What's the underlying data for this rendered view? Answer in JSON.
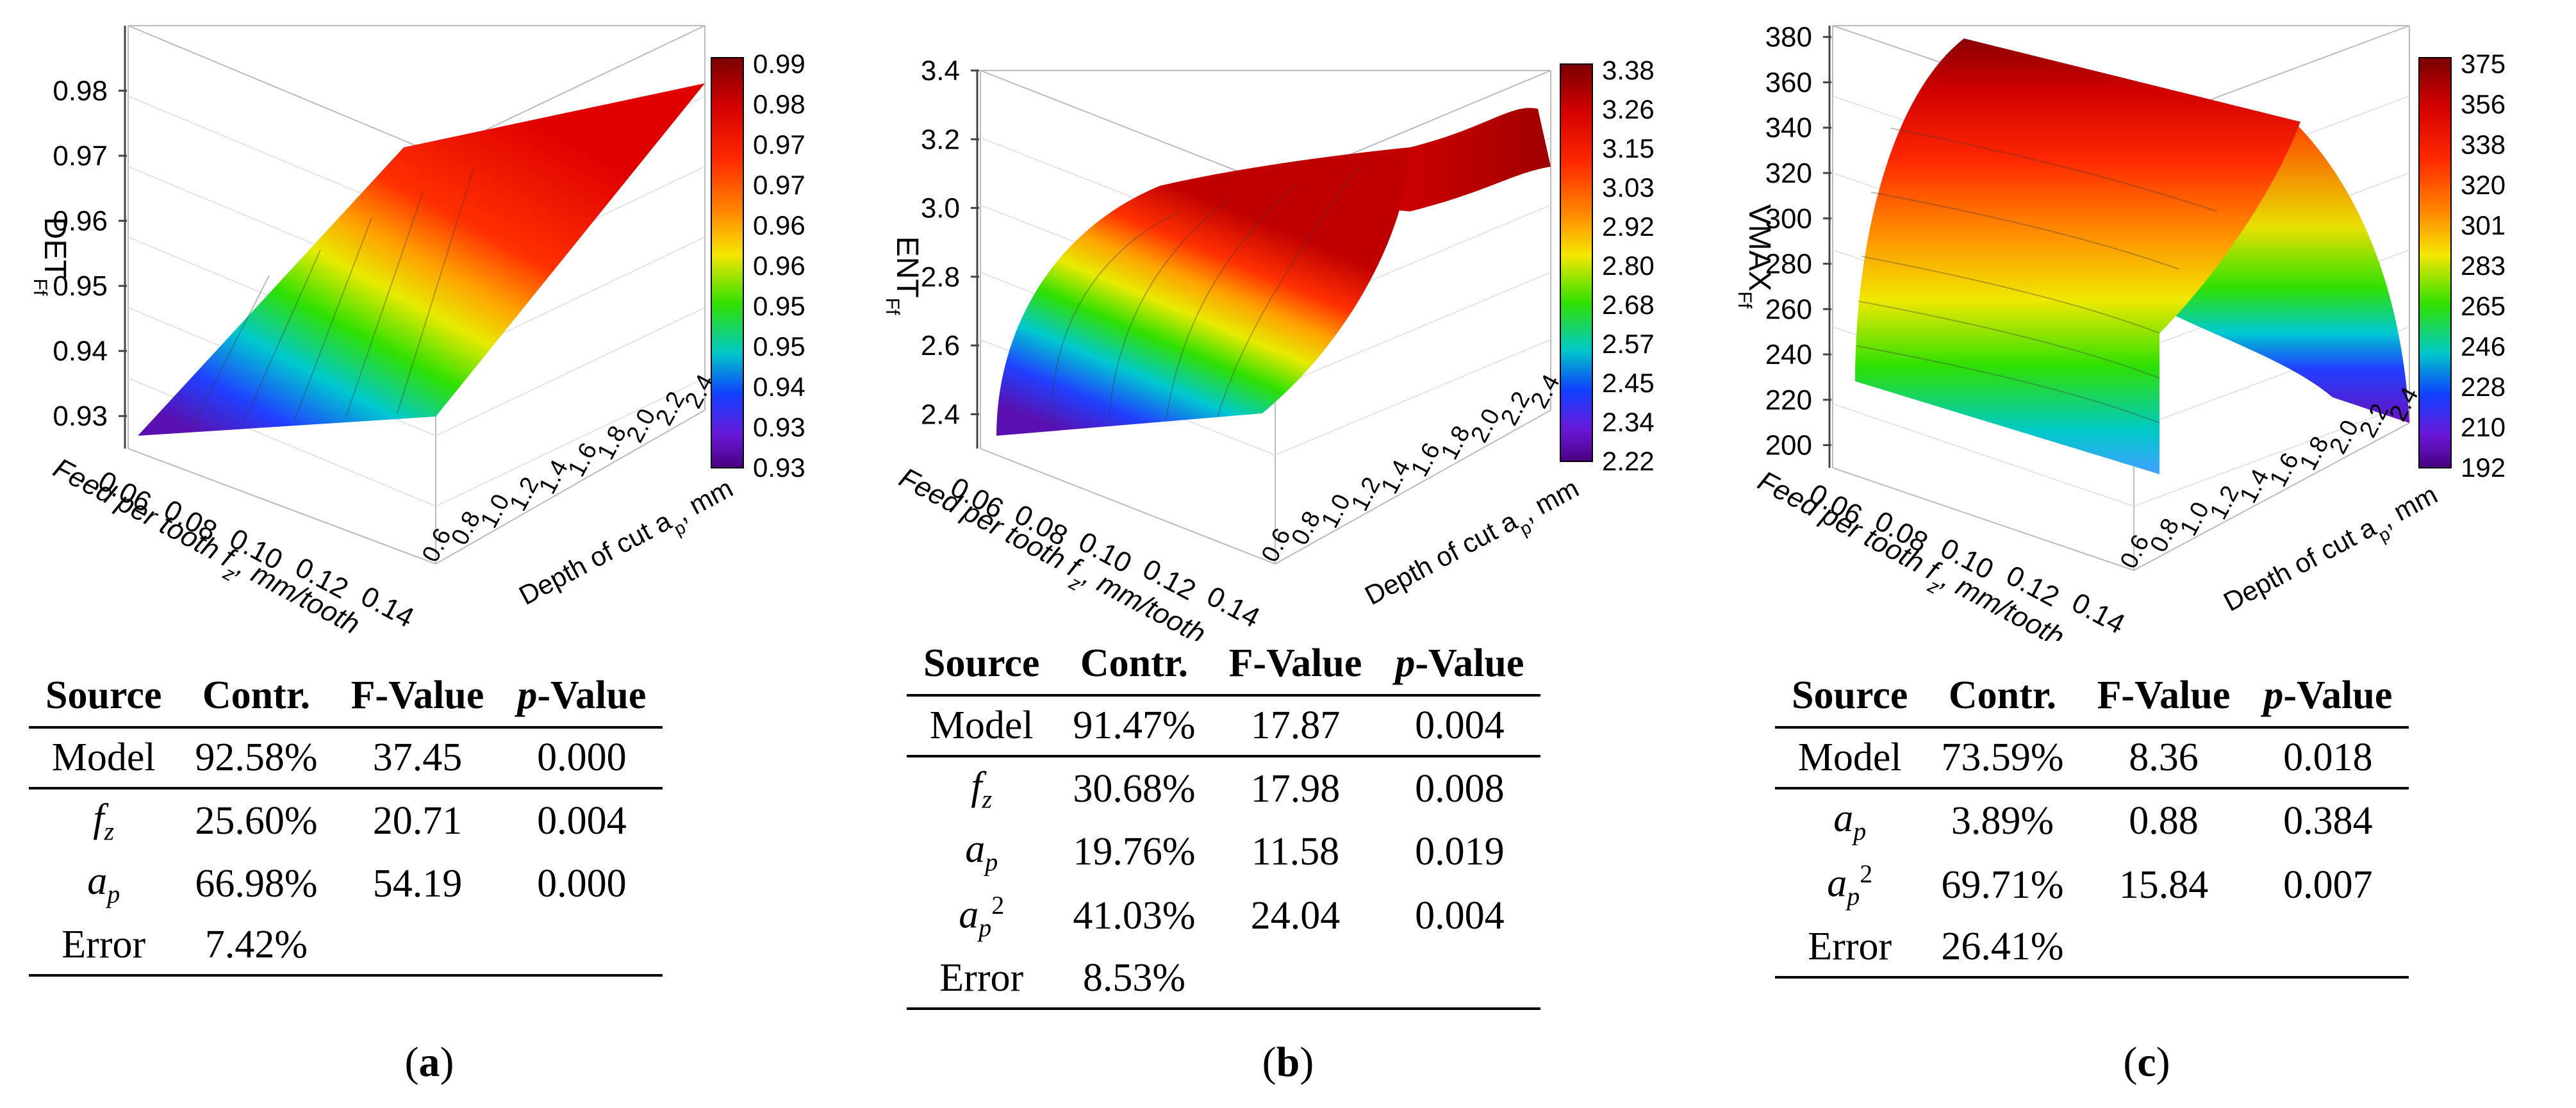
{
  "panels": [
    {
      "id": "a",
      "caption_letter": "a",
      "chart_data": {
        "type": "surface3d",
        "z_label_main": "DET",
        "z_label_sub": "Ff",
        "x_label": "Feed per tooth f",
        "x_label_sub": "z",
        "x_label_unit": ", mm/tooth",
        "y_label": "Depth of cut a",
        "y_label_sub": "p",
        "y_label_unit": ", mm",
        "x_ticks": [
          "0.06",
          "0.08",
          "0.10",
          "0.12",
          "0.14"
        ],
        "y_ticks": [
          "0.6",
          "0.8",
          "1.0",
          "1.2",
          "1.4",
          "1.6",
          "1.8",
          "2.0",
          "2.2",
          "2.4"
        ],
        "z_ticks": [
          "0.93",
          "0.94",
          "0.95",
          "0.96",
          "0.97",
          "0.98"
        ],
        "z_range": [
          0.925,
          0.99
        ],
        "colorbar_labels": [
          "0.99",
          "0.98",
          "0.97",
          "0.97",
          "0.96",
          "0.96",
          "0.95",
          "0.95",
          "0.94",
          "0.93",
          "0.93"
        ],
        "surface_shape": "plane"
      },
      "table": {
        "headers": [
          "Source",
          "Contr.",
          "F-Value",
          "p",
          "-Value"
        ],
        "model": [
          "Model",
          "92.58%",
          "37.45",
          "0.000"
        ],
        "rows": [
          {
            "sym": "f",
            "sub": "z",
            "sup": "",
            "contr": "25.60%",
            "f": "20.71",
            "p": "0.004"
          },
          {
            "sym": "a",
            "sub": "p",
            "sup": "",
            "contr": "66.98%",
            "f": "54.19",
            "p": "0.000"
          }
        ],
        "error": [
          "Error",
          "7.42%"
        ]
      }
    },
    {
      "id": "b",
      "caption_letter": "b",
      "chart_data": {
        "type": "surface3d",
        "z_label_main": "ENT",
        "z_label_sub": "Ff",
        "x_label": "Feed per tooth f",
        "x_label_sub": "z",
        "x_label_unit": ", mm/tooth",
        "y_label": "Depth of cut a",
        "y_label_sub": "p",
        "y_label_unit": ", mm",
        "x_ticks": [
          "0.06",
          "0.08",
          "0.10",
          "0.12",
          "0.14"
        ],
        "y_ticks": [
          "0.6",
          "0.8",
          "1.0",
          "1.2",
          "1.4",
          "1.6",
          "1.8",
          "2.0",
          "2.2",
          "2.4"
        ],
        "z_ticks": [
          "2.4",
          "2.6",
          "2.8",
          "3.0",
          "3.2",
          "3.4"
        ],
        "z_range": [
          2.3,
          3.4
        ],
        "colorbar_labels": [
          "3.38",
          "3.26",
          "3.15",
          "3.03",
          "2.92",
          "2.80",
          "2.68",
          "2.57",
          "2.45",
          "2.34",
          "2.22"
        ],
        "surface_shape": "curved"
      },
      "table": {
        "headers": [
          "Source",
          "Contr.",
          "F-Value",
          "p",
          "-Value"
        ],
        "model": [
          "Model",
          "91.47%",
          "17.87",
          "0.004"
        ],
        "rows": [
          {
            "sym": "f",
            "sub": "z",
            "sup": "",
            "contr": "30.68%",
            "f": "17.98",
            "p": "0.008"
          },
          {
            "sym": "a",
            "sub": "p",
            "sup": "",
            "contr": "19.76%",
            "f": "11.58",
            "p": "0.019"
          },
          {
            "sym": "a",
            "sub": "p",
            "sup": "2",
            "contr": "41.03%",
            "f": "24.04",
            "p": "0.004"
          }
        ],
        "error": [
          "Error",
          "8.53%"
        ]
      }
    },
    {
      "id": "c",
      "caption_letter": "c",
      "chart_data": {
        "type": "surface3d",
        "z_label_main": "VMAX",
        "z_label_sub": "Ff",
        "x_label": "Feed per tooth f",
        "x_label_sub": "z",
        "x_label_unit": ", mm/tooth",
        "y_label": "Depth of cut a",
        "y_label_sub": "p",
        "y_label_unit": ", mm",
        "x_ticks": [
          "0.06",
          "0.08",
          "0.10",
          "0.12",
          "0.14"
        ],
        "y_ticks": [
          "0.6",
          "0.8",
          "1.0",
          "1.2",
          "1.4",
          "1.6",
          "1.8",
          "2.0",
          "2.2",
          "2.4"
        ],
        "z_ticks": [
          "200",
          "220",
          "240",
          "260",
          "280",
          "300",
          "320",
          "340",
          "360",
          "380"
        ],
        "z_range": [
          190,
          385
        ],
        "colorbar_labels": [
          "375",
          "356",
          "338",
          "320",
          "301",
          "283",
          "265",
          "246",
          "228",
          "210",
          "192"
        ],
        "surface_shape": "arch"
      },
      "table": {
        "headers": [
          "Source",
          "Contr.",
          "F-Value",
          "p",
          "-Value"
        ],
        "model": [
          "Model",
          "73.59%",
          "8.36",
          "0.018"
        ],
        "rows": [
          {
            "sym": "a",
            "sub": "p",
            "sup": "",
            "contr": "3.89%",
            "f": "0.88",
            "p": "0.384"
          },
          {
            "sym": "a",
            "sub": "p",
            "sup": "2",
            "contr": "69.71%",
            "f": "15.84",
            "p": "0.007"
          }
        ],
        "error": [
          "Error",
          "26.41%"
        ]
      }
    }
  ]
}
